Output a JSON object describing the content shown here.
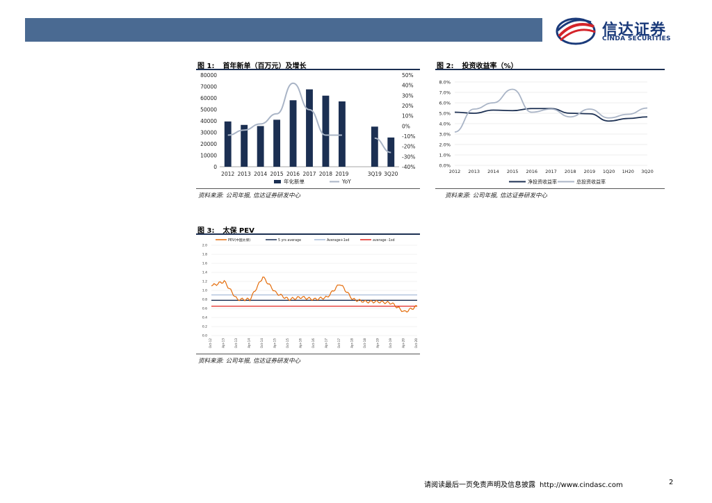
{
  "header": {
    "logo_cn": "信达证券",
    "logo_en": "CINDA SECURITIES"
  },
  "figures": [
    {
      "num": "图 1:",
      "title": "首年新单（百万元）及增长",
      "source": "资料来源: 公司年报, 信达证券研发中心"
    },
    {
      "num": "图 2:",
      "title": "投资收益率（%）",
      "source": "资料来源: 公司年报, 信达证券研发中心"
    },
    {
      "num": "图 3:",
      "title": "太保 PEV",
      "source": "资料来源: 公司年报, 信达证券研发中心"
    }
  ],
  "footer": {
    "disclaimer": "请阅读最后一页免责声明及信息披露",
    "url": "http://www.cindasc.com",
    "page": "2"
  },
  "colors": {
    "header_bar": "#4a6a92",
    "navy": "#1b2f52",
    "light_series": "#a9b4c6",
    "orange": "#e46c0a",
    "red": "#e0221b",
    "light_blue": "#a8bcd8"
  },
  "chart_data": [
    {
      "type": "bar",
      "categories": [
        "2012",
        "2013",
        "2014",
        "2015",
        "2016",
        "2017",
        "2018",
        "2019",
        "",
        "3Q19",
        "3Q20"
      ],
      "series": [
        {
          "name": "年化新单",
          "type": "bar",
          "axis": "left",
          "values": [
            39500,
            36500,
            35500,
            41000,
            58000,
            67500,
            62000,
            57000,
            null,
            35000,
            25500
          ]
        },
        {
          "name": "YoY",
          "type": "line",
          "axis": "right",
          "values": [
            -0.09,
            -0.04,
            0.02,
            0.12,
            0.42,
            0.16,
            -0.09,
            -0.09,
            null,
            -0.12,
            -0.26
          ]
        }
      ],
      "ylim_left": [
        0,
        80000
      ],
      "yticks_left": [
        "0",
        "10000",
        "20000",
        "30000",
        "40000",
        "50000",
        "60000",
        "70000",
        "80000"
      ],
      "ylim_right": [
        -0.4,
        0.5
      ],
      "yticks_right": [
        "-40%",
        "-30%",
        "-20%",
        "-10%",
        "0%",
        "10%",
        "20%",
        "30%",
        "40%",
        "50%"
      ],
      "legend_position": "bottom"
    },
    {
      "type": "line",
      "categories": [
        "2012",
        "2013",
        "2014",
        "2015",
        "2016",
        "2017",
        "2018",
        "2019",
        "1Q20",
        "1H20",
        "3Q20"
      ],
      "series": [
        {
          "name": "净投资收益率",
          "values": [
            5.1,
            5.0,
            5.3,
            5.25,
            5.45,
            5.45,
            5.0,
            4.95,
            4.25,
            4.5,
            4.65
          ]
        },
        {
          "name": "总投资收益率",
          "values": [
            3.2,
            5.4,
            6.0,
            7.3,
            5.1,
            5.4,
            4.65,
            5.4,
            4.55,
            4.9,
            5.5
          ]
        }
      ],
      "ylim": [
        0.0,
        8.0
      ],
      "yticks": [
        "0.0%",
        "1.0%",
        "2.0%",
        "3.0%",
        "4.0%",
        "5.0%",
        "6.0%",
        "7.0%",
        "8.0%"
      ],
      "grid": true,
      "legend_position": "bottom"
    },
    {
      "type": "line",
      "x_ticks": [
        "Oct-12",
        "Apr-13",
        "Oct-13",
        "Apr-14",
        "Oct-14",
        "Apr-15",
        "Oct-15",
        "Apr-16",
        "Oct-16",
        "Apr-17",
        "Oct-17",
        "Apr-18",
        "Oct-18",
        "Apr-19",
        "Oct-19",
        "Apr-20",
        "Oct-20"
      ],
      "series": [
        {
          "name": "PEV(中国太保)",
          "values": [
            1.1,
            1.2,
            0.8,
            0.8,
            1.3,
            0.95,
            0.8,
            0.85,
            0.8,
            0.85,
            1.15,
            0.8,
            0.75,
            0.75,
            0.72,
            0.52,
            0.65
          ]
        },
        {
          "name": "5 yrs average",
          "constant": 0.78
        },
        {
          "name": "Average+1sd",
          "constant": 0.9
        },
        {
          "name": "average -1sd",
          "constant": 0.65
        }
      ],
      "ylim": [
        0.0,
        2.0
      ],
      "yticks": [
        "0.0",
        "0.2",
        "0.4",
        "0.6",
        "0.8",
        "1.0",
        "1.2",
        "1.4",
        "1.6",
        "1.8",
        "2.0"
      ],
      "legend_position": "top"
    }
  ]
}
